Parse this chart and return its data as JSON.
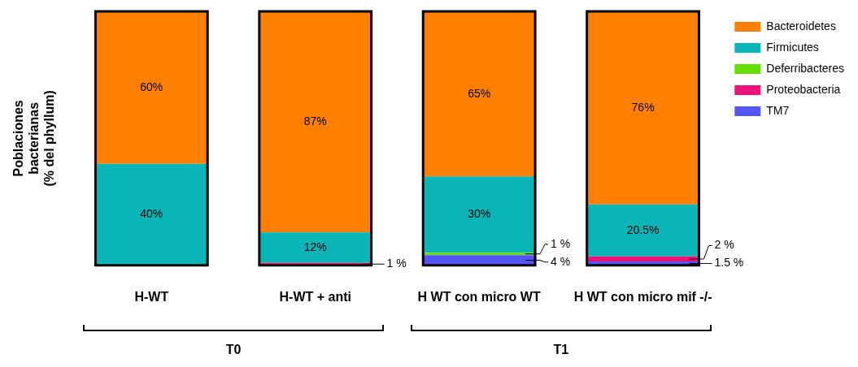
{
  "chart_data": {
    "type": "bar",
    "stacked": true,
    "ylabel": "Poblaciones\nbacterianas\n(% del phyllum)",
    "categories": [
      "H-WT",
      "H-WT + anti",
      "H WT con micro WT",
      "H WT con micro mif -/-"
    ],
    "ylim": [
      0,
      100
    ],
    "tick_labels": "x",
    "grid": false,
    "legend": "top right",
    "series": [
      {
        "name": "TM7",
        "color": "#5555ff",
        "values": [
          0,
          0,
          4,
          1.5
        ],
        "value_labels": [
          null,
          null,
          "4 %",
          "1.5 %"
        ]
      },
      {
        "name": "Proteobacteria",
        "color": "#ee1177",
        "values": [
          0,
          1,
          0,
          2
        ],
        "value_labels": [
          null,
          "1 %",
          null,
          "2 %"
        ]
      },
      {
        "name": "Deferribacteres",
        "color": "#66dd00",
        "values": [
          0,
          0,
          1,
          0
        ],
        "value_labels": [
          null,
          null,
          "1 %",
          null
        ]
      },
      {
        "name": "Firmicutes",
        "color": "#0ab5b8",
        "values": [
          40,
          12,
          30,
          20.5
        ],
        "value_labels": [
          "40%",
          "12%",
          "30%",
          "20.5%"
        ]
      },
      {
        "name": "Bacteroidetes",
        "color": "#ff8000",
        "values": [
          60,
          87,
          65,
          76
        ],
        "value_labels": [
          "60%",
          "87%",
          "65%",
          "76%"
        ]
      }
    ],
    "annotations": [
      "T0",
      "T1"
    ]
  }
}
